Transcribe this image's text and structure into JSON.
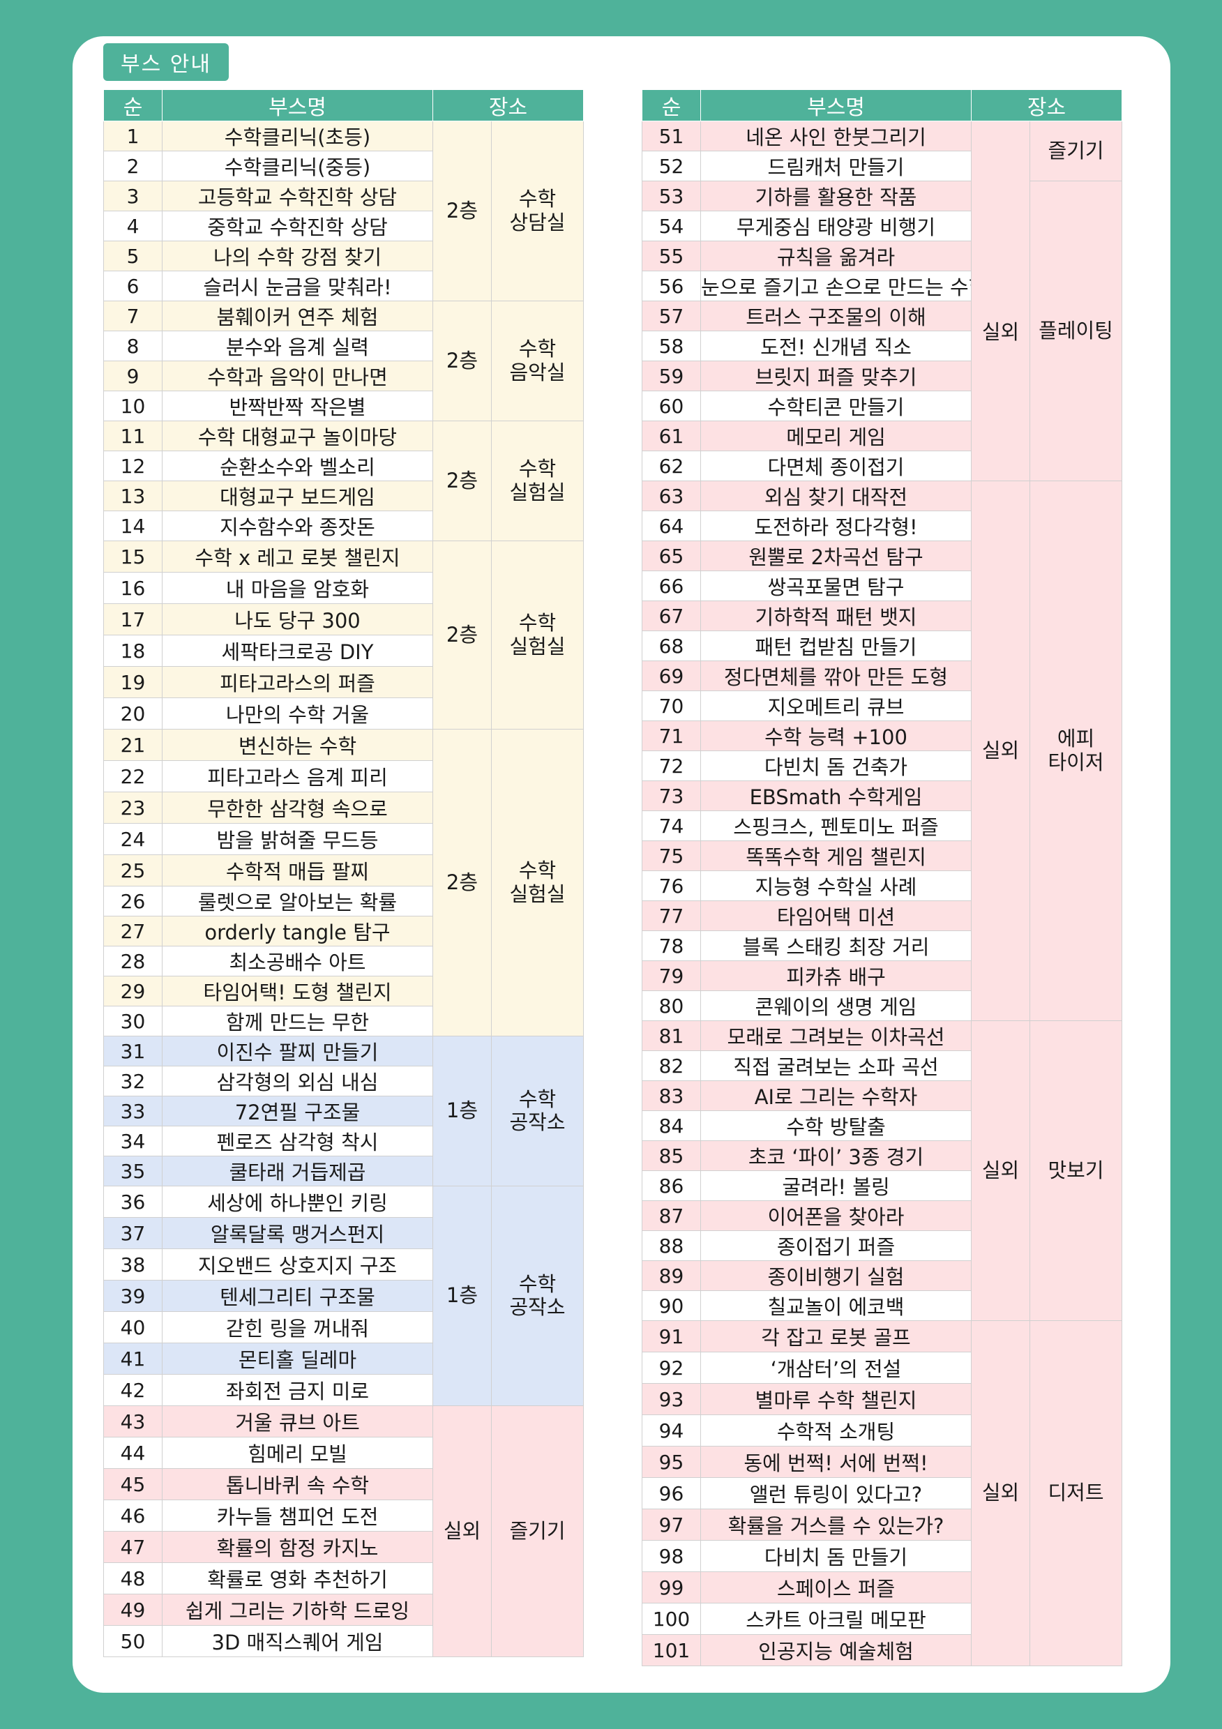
{
  "title": "부스 안내",
  "headers": {
    "num": "순",
    "name": "부스명",
    "location": "장소"
  },
  "left_table": {
    "rows": [
      {
        "num": "1",
        "name": "수학클리닉(초등)"
      },
      {
        "num": "2",
        "name": "수학클리닉(중등)"
      },
      {
        "num": "3",
        "name": "고등학교 수학진학 상담"
      },
      {
        "num": "4",
        "name": "중학교 수학진학 상담"
      },
      {
        "num": "5",
        "name": "나의 수학 강점 찾기"
      },
      {
        "num": "6",
        "name": "슬러시 눈금을 맞춰라!"
      },
      {
        "num": "7",
        "name": "붐훼이커 연주 체험"
      },
      {
        "num": "8",
        "name": "분수와 음계 실력"
      },
      {
        "num": "9",
        "name": "수학과 음악이 만나면"
      },
      {
        "num": "10",
        "name": "반짝반짝 작은별"
      },
      {
        "num": "11",
        "name": "수학 대형교구 놀이마당"
      },
      {
        "num": "12",
        "name": "순환소수와 벨소리"
      },
      {
        "num": "13",
        "name": "대형교구 보드게임"
      },
      {
        "num": "14",
        "name": "지수함수와 종잣돈"
      },
      {
        "num": "15",
        "name": "수학 x 레고 로봇 챌린지"
      },
      {
        "num": "16",
        "name": "내 마음을 암호화"
      },
      {
        "num": "17",
        "name": "나도 당구 300"
      },
      {
        "num": "18",
        "name": "세팍타크로공 DIY"
      },
      {
        "num": "19",
        "name": "피타고라스의 퍼즐"
      },
      {
        "num": "20",
        "name": "나만의 수학 거울"
      },
      {
        "num": "21",
        "name": "변신하는 수학"
      },
      {
        "num": "22",
        "name": "피타고라스 음계 피리"
      },
      {
        "num": "23",
        "name": "무한한 삼각형 속으로"
      },
      {
        "num": "24",
        "name": "밤을 밝혀줄 무드등"
      },
      {
        "num": "25",
        "name": "수학적 매듭 팔찌"
      },
      {
        "num": "26",
        "name": "룰렛으로 알아보는 확률"
      },
      {
        "num": "27",
        "name": "orderly tangle 탐구"
      },
      {
        "num": "28",
        "name": "최소공배수 아트"
      },
      {
        "num": "29",
        "name": "타임어택! 도형 챌린지"
      },
      {
        "num": "30",
        "name": "함께 만드는 무한"
      },
      {
        "num": "31",
        "name": "이진수 팔찌 만들기"
      },
      {
        "num": "32",
        "name": "삼각형의 외심 내심"
      },
      {
        "num": "33",
        "name": "72연필 구조물"
      },
      {
        "num": "34",
        "name": "펜로즈 삼각형 착시"
      },
      {
        "num": "35",
        "name": "쿨타래 거듭제곱"
      },
      {
        "num": "36",
        "name": "세상에 하나뿐인 키링"
      },
      {
        "num": "37",
        "name": "알록달록 맹거스펀지"
      },
      {
        "num": "38",
        "name": "지오밴드 상호지지 구조"
      },
      {
        "num": "39",
        "name": "텐세그리티 구조물"
      },
      {
        "num": "40",
        "name": "갇힌 링을 꺼내줘"
      },
      {
        "num": "41",
        "name": "몬티홀 딜레마"
      },
      {
        "num": "42",
        "name": "좌회전 금지 미로"
      },
      {
        "num": "43",
        "name": "거울 큐브 아트"
      },
      {
        "num": "44",
        "name": "힘메리 모빌"
      },
      {
        "num": "45",
        "name": "톱니바퀴 속 수학"
      },
      {
        "num": "46",
        "name": "카누들 챔피언 도전"
      },
      {
        "num": "47",
        "name": "확률의 함정 카지노"
      },
      {
        "num": "48",
        "name": "확률로 영화 추천하기"
      },
      {
        "num": "49",
        "name": "쉽게 그리는 기하학 드로잉"
      },
      {
        "num": "50",
        "name": "3D 매직스퀘어 게임"
      }
    ],
    "groups": [
      {
        "floor": "2층",
        "place": "수학 상담실"
      },
      {
        "floor": "2층",
        "place": "수학 음악실"
      },
      {
        "floor": "2층",
        "place": "수학 실험실"
      },
      {
        "floor": "2층",
        "place": "수학 실험실"
      },
      {
        "floor": "2층",
        "place": "수학 실험실"
      },
      {
        "floor": "1층",
        "place": "수학 공작소"
      },
      {
        "floor": "1층",
        "place": "수학 공작소"
      },
      {
        "floor": "실외",
        "place": "즐기기"
      }
    ]
  },
  "right_table": {
    "rows": [
      {
        "num": "51",
        "name": "네온 사인 한붓그리기"
      },
      {
        "num": "52",
        "name": "드림캐처 만들기"
      },
      {
        "num": "53",
        "name": "기하를 활용한 작품"
      },
      {
        "num": "54",
        "name": "무게중심 태양광 비행기"
      },
      {
        "num": "55",
        "name": "규칙을 옮겨라"
      },
      {
        "num": "56",
        "name": "눈으로 즐기고 손으로 만드는 수학"
      },
      {
        "num": "57",
        "name": "트러스 구조물의 이해"
      },
      {
        "num": "58",
        "name": "도전! 신개념 직소"
      },
      {
        "num": "59",
        "name": "브릿지 퍼즐 맞추기"
      },
      {
        "num": "60",
        "name": "수학티콘 만들기"
      },
      {
        "num": "61",
        "name": "메모리 게임"
      },
      {
        "num": "62",
        "name": "다면체 종이접기"
      },
      {
        "num": "63",
        "name": "외심 찾기 대작전"
      },
      {
        "num": "64",
        "name": "도전하라 정다각형!"
      },
      {
        "num": "65",
        "name": "원뿔로 2차곡선 탐구"
      },
      {
        "num": "66",
        "name": "쌍곡포물면 탐구"
      },
      {
        "num": "67",
        "name": "기하학적 패턴 뱃지"
      },
      {
        "num": "68",
        "name": "패턴 컵받침 만들기"
      },
      {
        "num": "69",
        "name": "정다면체를 깎아 만든 도형"
      },
      {
        "num": "70",
        "name": "지오메트리 큐브"
      },
      {
        "num": "71",
        "name": "수학 능력 +100"
      },
      {
        "num": "72",
        "name": "다빈치 돔 건축가"
      },
      {
        "num": "73",
        "name": "EBSmath 수학게임"
      },
      {
        "num": "74",
        "name": "스핑크스, 펜토미노 퍼즐"
      },
      {
        "num": "75",
        "name": "똑똑수학 게임 챌린지"
      },
      {
        "num": "76",
        "name": "지능형 수학실 사례"
      },
      {
        "num": "77",
        "name": "타임어택 미션"
      },
      {
        "num": "78",
        "name": "블록 스태킹 최장 거리"
      },
      {
        "num": "79",
        "name": "피카츄 배구"
      },
      {
        "num": "80",
        "name": "콘웨이의 생명 게임"
      },
      {
        "num": "81",
        "name": "모래로 그려보는 이차곡선"
      },
      {
        "num": "82",
        "name": "직접 굴려보는 소파 곡선"
      },
      {
        "num": "83",
        "name": "AI로 그리는 수학자"
      },
      {
        "num": "84",
        "name": "수학 방탈출"
      },
      {
        "num": "85",
        "name": "초코 ‘파이’ 3종 경기"
      },
      {
        "num": "86",
        "name": "굴려라! 볼링"
      },
      {
        "num": "87",
        "name": "이어폰을 찾아라"
      },
      {
        "num": "88",
        "name": "종이접기 퍼즐"
      },
      {
        "num": "89",
        "name": "종이비행기 실험"
      },
      {
        "num": "90",
        "name": "칠교놀이 에코백"
      },
      {
        "num": "91",
        "name": "각 잡고 로봇 골프"
      },
      {
        "num": "92",
        "name": "‘개삼터’의 전설"
      },
      {
        "num": "93",
        "name": "별마루 수학 챌린지"
      },
      {
        "num": "94",
        "name": "수학적 소개팅"
      },
      {
        "num": "95",
        "name": "동에 번쩍! 서에 번쩍!"
      },
      {
        "num": "96",
        "name": "앨런 튜링이 있다고?"
      },
      {
        "num": "97",
        "name": "확률을 거스를 수 있는가?"
      },
      {
        "num": "98",
        "name": "다비치 돔 만들기"
      },
      {
        "num": "99",
        "name": "스페이스 퍼즐"
      },
      {
        "num": "100",
        "name": "스카트 아크릴 메모판"
      },
      {
        "num": "101",
        "name": "인공지능 예술체험"
      }
    ],
    "groups": [
      {
        "floor": "실외",
        "place": "플레이팅"
      },
      {
        "floor": "실외",
        "place": "에피 타이저"
      },
      {
        "floor": "실외",
        "place": "맛보기"
      },
      {
        "floor": "실외",
        "place": "디저트"
      }
    ],
    "place_extra": [
      {
        "place": "즐기기"
      }
    ]
  },
  "colors": {
    "brand_green": "#4fb29a",
    "row_yellow": "#fdf7e3",
    "row_blue": "#dce6f7",
    "row_pink": "#fde1e3"
  }
}
